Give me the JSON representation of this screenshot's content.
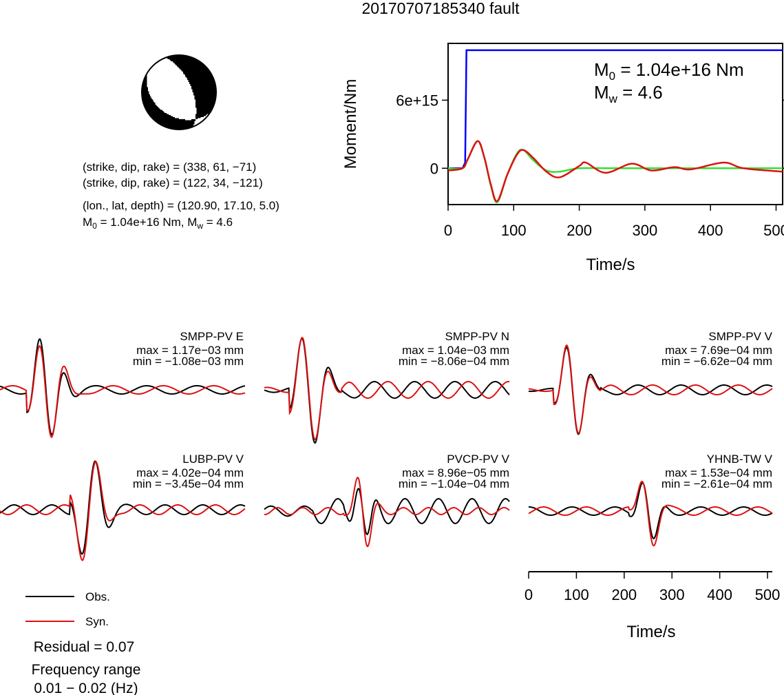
{
  "title": "20170707185340 fault",
  "beachball": {
    "strike": 338,
    "dip": 61,
    "rake": -71,
    "colors": {
      "compression": "#000000",
      "dilatation": "#ffffff"
    }
  },
  "info": {
    "line1": "(strike, dip, rake) = (338, 61, −71)",
    "line2": "(strike, dip, rake) = (122, 34, −121)",
    "line3": "(lon., lat, depth) = (120.90, 17.10, 5.0)",
    "line4_m0": "M",
    "line4_m0_sub": "0",
    "line4_m0_rest": " = 1.04e+16 Nm, M",
    "line4_mw_sub": "w",
    "line4_mw_rest": " = 4.6"
  },
  "moment_panel": {
    "ylabel": "Moment/Nm",
    "xlabel": "Time/s",
    "m0_prefix": "M",
    "m0_sub": "0",
    "m0_text": " = 1.04e+16 Nm",
    "mw_prefix": "M",
    "mw_sub": "w",
    "mw_text": " = 4.6",
    "yticks": [
      {
        "value": 0,
        "label": "0"
      },
      {
        "value": 6000000000000000.0,
        "label": "6e+15"
      }
    ],
    "xticks": [
      {
        "value": 0,
        "label": "0"
      },
      {
        "value": 100,
        "label": "100"
      },
      {
        "value": 200,
        "label": "200"
      },
      {
        "value": 300,
        "label": "300"
      },
      {
        "value": 400,
        "label": "400"
      },
      {
        "value": 500,
        "label": "500"
      }
    ],
    "xlim": [
      0,
      510
    ],
    "ylim": [
      -3200000000000000.0,
      1.1e+16
    ],
    "colors": {
      "cumulative": "#0000ff",
      "rate_obs": "#33dd33",
      "rate_syn": "#dd1111"
    }
  },
  "legend": {
    "obs_label": "Obs.",
    "syn_label": "Syn.",
    "obs_color": "#000000",
    "syn_color": "#dd1111"
  },
  "residual": "Residual = 0.07",
  "freq_label": "Frequency range",
  "freq_value": "0.01 − 0.02 (Hz)",
  "waveform_axis": {
    "xlabel": "Time/s",
    "xticks": [
      {
        "value": 0,
        "label": "0"
      },
      {
        "value": 100,
        "label": "100"
      },
      {
        "value": 200,
        "label": "200"
      },
      {
        "value": 300,
        "label": "300"
      },
      {
        "value": 400,
        "label": "400"
      },
      {
        "value": 500,
        "label": "500"
      }
    ],
    "xlim": [
      0,
      510
    ]
  },
  "chart_data": [
    {
      "type": "line",
      "title": "",
      "xlabel": "Time/s",
      "ylabel": "Moment/Nm",
      "xlim": [
        0,
        510
      ],
      "ylim": [
        -3200000000000000.0,
        1.1e+16
      ],
      "series": [
        {
          "x": [
            0,
            22,
            26,
            28,
            510
          ],
          "y": [
            0,
            0,
            500000000000000.0,
            1.04e+16,
            1.04e+16
          ]
        },
        {
          "x": [
            0,
            22,
            30,
            45,
            55,
            65,
            75,
            90,
            105,
            115,
            130,
            150,
            170,
            200,
            250,
            300,
            400,
            510
          ],
          "y": [
            0,
            0,
            800000000000000.0,
            2400000000000000.0,
            1000000000000000.0,
            -1500000000000000.0,
            -3000000000000000.0,
            -600000000000000.0,
            1300000000000000.0,
            1600000000000000.0,
            700000000000000.0,
            -200000000000000.0,
            -300000000000000.0,
            0.0,
            0.0,
            0.0,
            0.0,
            0.0
          ]
        },
        {
          "x": [
            0,
            22,
            30,
            45,
            55,
            65,
            75,
            90,
            105,
            115,
            130,
            150,
            170,
            200,
            210,
            240,
            280,
            310,
            345,
            370,
            420,
            450,
            510
          ],
          "y": [
            -200000000000000.0,
            0.0,
            800000000000000.0,
            2400000000000000.0,
            1000000000000000.0,
            -1400000000000000.0,
            -2900000000000000.0,
            -600000000000000.0,
            1200000000000000.0,
            1600000000000000.0,
            900000000000000.0,
            -300000000000000.0,
            -800000000000000.0,
            200000000000000.0,
            500000000000000.0,
            -400000000000000.0,
            400000000000000.0,
            -200000000000000.0,
            100000000000000.0,
            -100000000000000.0,
            500000000000000.0,
            0.0,
            -300000000000000.0
          ]
        }
      ]
    },
    {
      "type": "line",
      "series": [
        {
          "name": "SMPP-PV E"
        },
        {
          "max": "max = 1.17e−03 mm",
          "min": "min = −1.08e−03 mm"
        }
      ]
    },
    {
      "type": "line",
      "series": [
        {
          "name": "SMPP-PV N"
        },
        {
          "max": "max = 1.04e−03 mm",
          "min": "min = −8.06e−04 mm"
        }
      ]
    },
    {
      "type": "line",
      "series": [
        {
          "name": "SMPP-PV V"
        },
        {
          "max": "max = 7.69e−04 mm",
          "min": "min = −6.62e−04 mm"
        }
      ]
    },
    {
      "type": "line",
      "series": [
        {
          "name": "LUBP-PV V"
        },
        {
          "max": "max = 4.02e−04 mm",
          "min": "min = −3.45e−04 mm"
        }
      ]
    },
    {
      "type": "line",
      "series": [
        {
          "name": "PVCP-PV V"
        },
        {
          "max": "max = 8.96e−05 mm",
          "min": "min = −1.04e−04 mm"
        }
      ]
    },
    {
      "type": "line",
      "series": [
        {
          "name": "YHNB-TW V"
        },
        {
          "max": "max = 1.53e−04 mm",
          "min": "min = −2.61e−04 mm"
        }
      ]
    }
  ]
}
